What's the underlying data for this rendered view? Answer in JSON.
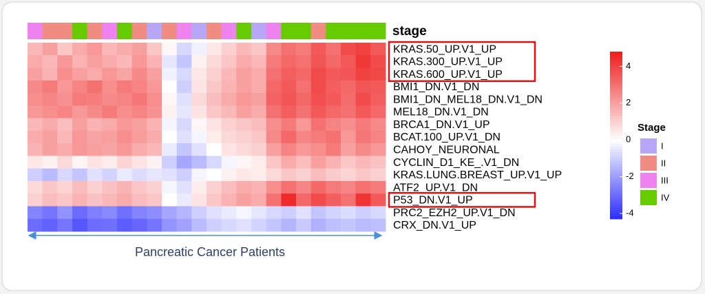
{
  "chart_data": {
    "type": "heatmap",
    "annotation_title": "stage",
    "x_label": "Pancreatic Cancer Patients",
    "rows": [
      "KRAS.50_UP.V1_UP",
      "KRAS.300_UP.V1_UP",
      "KRAS.600_UP.V1_UP",
      "BMI1_DN.V1_DN",
      "BMI1_DN_MEL18_DN.V1_DN",
      "MEL18_DN.V1_DN",
      "BRCA1_DN.V1_UP",
      "BCAT.100_UP.V1_DN",
      "CAHOY_NEURONAL",
      "CYCLIN_D1_KE_.V1_DN",
      "KRAS.LUNG.BREAST_UP.V1_UP",
      "ATF2_UP.V1_DN",
      "P53_DN.V1_UP",
      "PRC2_EZH2_UP.V1_DN",
      "CRX_DN.V1_UP"
    ],
    "stages": [
      "III",
      "II",
      "II",
      "IV",
      "II",
      "III",
      "IV",
      "II",
      "I",
      "II",
      "III",
      "I",
      "II",
      "III",
      "IV",
      "I",
      "III",
      "IV",
      "IV",
      "II",
      "IV",
      "IV",
      "IV",
      "IV"
    ],
    "values": [
      [
        1.5,
        2,
        1.2,
        1.8,
        2.2,
        1.5,
        1.8,
        2,
        1.2,
        0.2,
        -0.8,
        -0.3,
        0.5,
        1,
        1.5,
        1.2,
        2.5,
        3,
        2.8,
        3.5,
        3,
        3.8,
        4,
        3.5
      ],
      [
        1.8,
        1.5,
        2.2,
        1.6,
        2,
        1.8,
        1.5,
        2.2,
        1.6,
        -0.5,
        -1.2,
        0.3,
        0.8,
        1.2,
        1.8,
        1.5,
        2.8,
        3.2,
        3,
        3.6,
        3.2,
        3.5,
        4.2,
        3.8
      ],
      [
        2,
        1.6,
        2.4,
        2,
        1.8,
        2.2,
        1.9,
        2.5,
        2,
        -0.3,
        -0.8,
        0.5,
        1,
        1.5,
        2,
        1.8,
        3,
        3.4,
        3.2,
        3.8,
        3.5,
        3.6,
        4,
        3.9
      ],
      [
        2.5,
        2.8,
        2.2,
        2.6,
        3,
        2.4,
        2.8,
        2.6,
        2.2,
        0,
        -1,
        0.6,
        1.2,
        1.6,
        2,
        1.8,
        3.2,
        3.5,
        3,
        3.8,
        3.4,
        3.2,
        3.6,
        3.5
      ],
      [
        2.4,
        2.6,
        2.3,
        2.8,
        2.7,
        2.5,
        2.6,
        2.9,
        2.4,
        0.2,
        -0.6,
        0.8,
        1.4,
        1.8,
        2.2,
        2,
        3.3,
        3.6,
        3.2,
        3.7,
        3.5,
        3.1,
        3.8,
        3.4
      ],
      [
        2.2,
        2.4,
        2.6,
        2.2,
        2.5,
        2.8,
        2.4,
        2.6,
        2.3,
        0.3,
        -0.5,
        0.6,
        1.2,
        1.5,
        2,
        1.8,
        3,
        3.4,
        3,
        3.5,
        3.2,
        3,
        3.5,
        3.2
      ],
      [
        1.5,
        1.8,
        1.4,
        2,
        1.6,
        1.8,
        2.2,
        2,
        1.6,
        -0.2,
        -0.8,
        0.2,
        0.6,
        1,
        1.2,
        1.4,
        2.4,
        2.8,
        2.2,
        3,
        2.6,
        2.4,
        2.8,
        2.5
      ],
      [
        1.8,
        2,
        1.5,
        2.2,
        1.9,
        2,
        2.4,
        2.1,
        1.8,
        0,
        -0.6,
        -0.2,
        0.4,
        0.8,
        1,
        1.2,
        2.5,
        3.2,
        2.6,
        2.8,
        3,
        2.2,
        2.9,
        2.6
      ],
      [
        1.6,
        2,
        1.8,
        2.2,
        2,
        1.9,
        2.2,
        1.8,
        1.5,
        -0.4,
        -1.2,
        -0.6,
        0,
        0.6,
        0.8,
        1,
        2,
        2.6,
        2.2,
        2.4,
        2.8,
        2,
        2.5,
        2.2
      ],
      [
        0.5,
        0.3,
        0.8,
        0.2,
        0.6,
        0.4,
        0.9,
        0.6,
        0.3,
        -1,
        -1.8,
        -1.4,
        -0.8,
        -0.2,
        0.2,
        0.4,
        1.2,
        1.8,
        1.4,
        2,
        1.6,
        1.2,
        1.5,
        1.3
      ],
      [
        -1,
        -1.4,
        -0.8,
        -1.2,
        -0.6,
        -0.9,
        -0.4,
        -0.7,
        -0.5,
        -0.6,
        -1,
        -0.2,
        0,
        0.3,
        0.5,
        0.4,
        0.8,
        1.2,
        1,
        1.4,
        1.1,
        0.9,
        1.2,
        1
      ],
      [
        0.8,
        1.2,
        0.9,
        1.4,
        1,
        1.3,
        1.6,
        1.2,
        1,
        -0.2,
        -0.6,
        0.4,
        1,
        1.4,
        1.8,
        1.6,
        2.4,
        3,
        2.6,
        3.2,
        2.8,
        2.6,
        3,
        2.8
      ],
      [
        1,
        1.4,
        1.2,
        1.6,
        1.3,
        1.5,
        1.8,
        1.4,
        1.2,
        0,
        -0.4,
        0.6,
        1.2,
        1.6,
        2,
        1.8,
        3,
        4.5,
        3.2,
        3.8,
        3.4,
        3,
        4.3,
        3.5
      ],
      [
        -2.5,
        -2.8,
        -2.2,
        -3,
        -2.6,
        -2.4,
        -2.9,
        -2.5,
        -2.3,
        -1.8,
        -1.5,
        -1,
        -0.6,
        -0.4,
        -0.2,
        -0.5,
        -0.8,
        -1,
        -0.6,
        -1.2,
        -0.9,
        -0.7,
        -1,
        -0.8
      ],
      [
        -3,
        -3.2,
        -2.8,
        -3.4,
        -3,
        -2.9,
        -3.3,
        -3.1,
        -2.8,
        -2.2,
        -1.9,
        -1.4,
        -1,
        -0.8,
        -0.6,
        -0.9,
        -1.2,
        -1.5,
        -1.1,
        -1.6,
        -1.3,
        -1.2,
        -1.4,
        -1.3
      ]
    ],
    "zlim": [
      -4.3,
      4.8
    ],
    "zticks": [
      -4,
      -2,
      0,
      2,
      4
    ],
    "colormap": {
      "low": "#2b2bff",
      "mid": "#ffffff",
      "high": "#ee1c1c"
    },
    "legend_title": "Stage",
    "stage_levels": [
      "I",
      "II",
      "III",
      "IV"
    ],
    "stage_colors": [
      "#b7a8f7",
      "#f08c82",
      "#ee82ee",
      "#66cc00"
    ],
    "highlight_color": "#dd1111",
    "highlight_boxes": [
      [
        0,
        2
      ],
      [
        12,
        12
      ]
    ]
  }
}
